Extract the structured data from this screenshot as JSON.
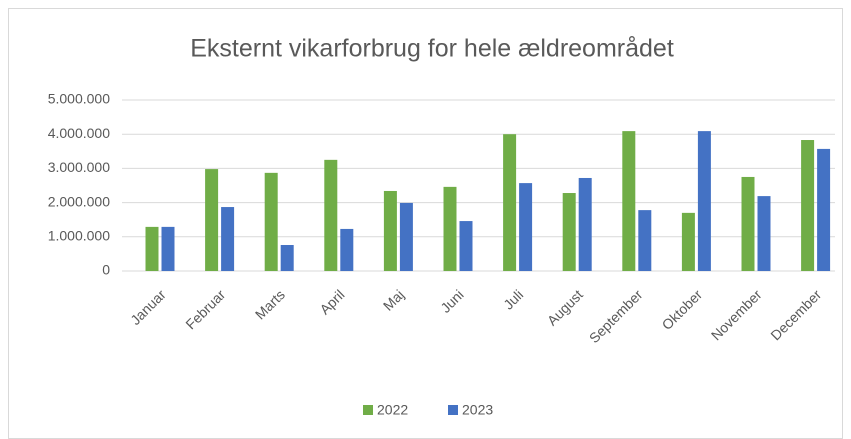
{
  "chart_data": {
    "type": "bar",
    "title": "Eksternt vikarforbrug for hele ældreområdet",
    "categories": [
      "Januar",
      "Februar",
      "Marts",
      "April",
      "Maj",
      "Juni",
      "Juli",
      "August",
      "September",
      "Oktober",
      "November",
      "December"
    ],
    "series": [
      {
        "name": "2022",
        "color": "#70ad47",
        "values": [
          1290000,
          2980000,
          2870000,
          3250000,
          2340000,
          2460000,
          4000000,
          2280000,
          4090000,
          1700000,
          2750000,
          3830000
        ]
      },
      {
        "name": "2023",
        "color": "#4472c4",
        "values": [
          1290000,
          1870000,
          760000,
          1230000,
          1990000,
          1460000,
          2570000,
          2720000,
          1780000,
          4090000,
          2190000,
          3570000
        ]
      }
    ],
    "ylim": [
      0,
      5000000
    ],
    "yticks": [
      0,
      {
        "value": 1000000,
        "label": "1.000.000"
      },
      {
        "value": 2000000,
        "label": "2.000.000"
      },
      {
        "value": 3000000,
        "label": "3.000.000"
      },
      {
        "value": 4000000,
        "label": "4.000.000"
      },
      {
        "value": 5000000,
        "label": "5.000.000"
      }
    ],
    "grid": true,
    "legend": "bottom"
  }
}
